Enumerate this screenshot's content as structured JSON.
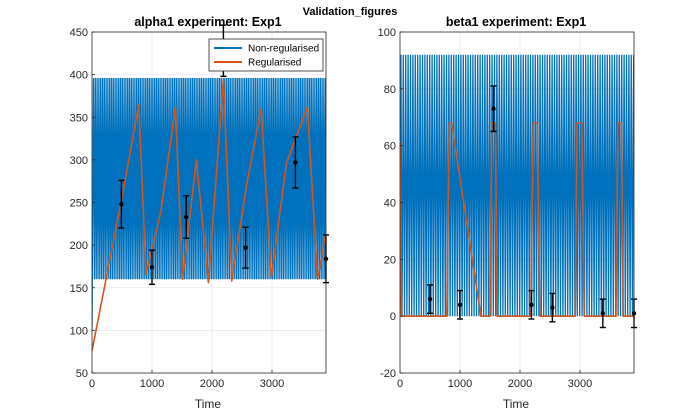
{
  "figure": {
    "suptitle": "Validation_figures"
  },
  "colors": {
    "nonreg": "#0072BD",
    "reg": "#D95319",
    "data": "#000000",
    "grid": "#e6e6e6",
    "axis": "#262626"
  },
  "chart_data": [
    {
      "type": "line",
      "title": "alpha1 experiment: Exp1",
      "xlabel": "Time",
      "ylabel": "",
      "xlim": [
        0,
        3900
      ],
      "ylim": [
        50,
        450
      ],
      "xticks": [
        0,
        1000,
        2000,
        3000
      ],
      "yticks": [
        50,
        100,
        150,
        200,
        250,
        300,
        350,
        400,
        450
      ],
      "grid": true,
      "legend": {
        "location": "top-right",
        "entries": [
          "Non-regularised",
          "Regularised"
        ]
      },
      "series": [
        {
          "name": "Non-regularised",
          "kind": "oscillation",
          "start": {
            "x": 0,
            "y": 100
          },
          "rise_to_x": 25,
          "x_range": [
            25,
            3900
          ],
          "period": 30,
          "min": 160,
          "max": 396
        },
        {
          "name": "Regularised",
          "kind": "polyline",
          "x": [
            0,
            490,
            780,
            900,
            1150,
            1390,
            1510,
            1740,
            1940,
            2190,
            2330,
            2580,
            2820,
            2990,
            3240,
            3590,
            3760,
            3900
          ],
          "y": [
            76,
            252,
            365,
            166,
            240,
            362,
            160,
            300,
            156,
            395,
            158,
            272,
            360,
            162,
            296,
            362,
            160,
            215
          ]
        }
      ],
      "errorbars": {
        "name": "data",
        "x": [
          490,
          1000,
          1570,
          2190,
          2560,
          3390,
          3900
        ],
        "y": [
          248,
          174,
          233,
          428,
          197,
          297,
          184
        ],
        "err": [
          28,
          20,
          25,
          30,
          24,
          30,
          28
        ]
      }
    },
    {
      "type": "line",
      "title": "beta1 experiment: Exp1",
      "xlabel": "Time",
      "ylabel": "",
      "xlim": [
        0,
        3900
      ],
      "ylim": [
        -20,
        100
      ],
      "xticks": [
        0,
        1000,
        2000,
        3000
      ],
      "yticks": [
        -20,
        0,
        20,
        40,
        60,
        80,
        100
      ],
      "grid": true,
      "legend": null,
      "series": [
        {
          "name": "Non-regularised",
          "kind": "oscillation",
          "start": {
            "x": 0,
            "y": 0
          },
          "rise_to_x": 15,
          "x_range": [
            15,
            3900
          ],
          "period": 40,
          "min": 0,
          "max": 92
        },
        {
          "name": "Regularised",
          "kind": "pulses",
          "x": [
            0,
            0,
            30,
            780,
            820,
            860,
            1350,
            1390,
            1500,
            1530,
            1590,
            1620,
            1640,
            1690,
            2180,
            2220,
            2290,
            2330,
            2340,
            2360,
            2920,
            2950,
            3030,
            3070,
            3600,
            3630,
            3690,
            3720,
            3900
          ],
          "y": [
            0,
            61,
            0,
            0,
            68,
            68,
            0,
            0,
            0,
            68,
            68,
            0,
            0,
            0,
            0,
            68,
            68,
            0,
            0,
            0,
            0,
            68,
            68,
            0,
            0,
            68,
            68,
            0,
            0
          ]
        }
      ],
      "errorbars": {
        "name": "data",
        "x": [
          500,
          1000,
          1560,
          2190,
          2540,
          3380,
          3900
        ],
        "y": [
          6,
          4,
          73,
          4,
          3,
          1,
          1
        ],
        "err": [
          5,
          5,
          8,
          5,
          5,
          5,
          5
        ]
      }
    }
  ]
}
